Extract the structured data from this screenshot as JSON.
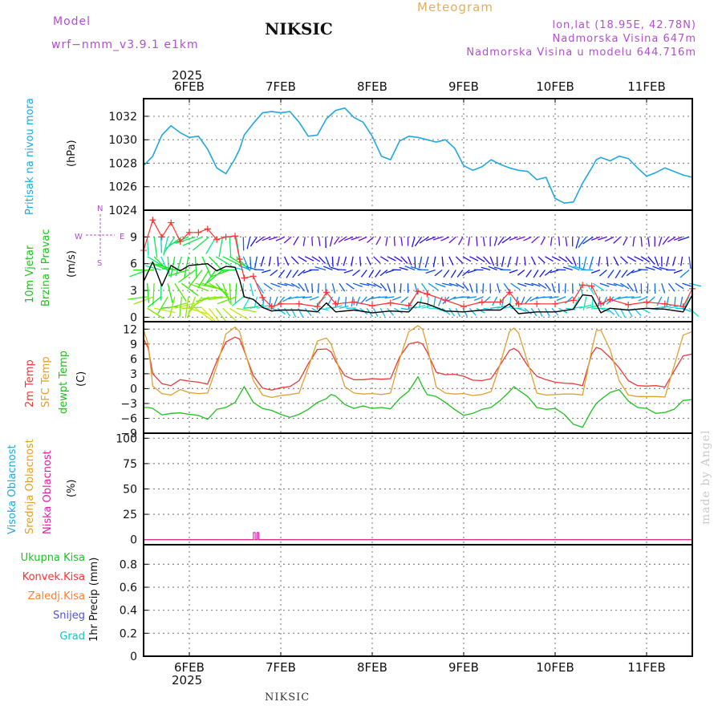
{
  "header": {
    "model_label": "Model",
    "model_name": "wrf−nmm_v3.9.1 e1km",
    "station": "NIKSIC",
    "chart_title": "Meteogram",
    "location": "lon,lat (18.95E, 42.78N)",
    "elevation": "Nadmorska Visina 647m",
    "model_elevation": "Nadmorska Visina u modelu 644.716m"
  },
  "footer": {
    "station": "NIKSIC",
    "credit": "made by Angel"
  },
  "colors": {
    "pressure": "#20a8e0",
    "wind_speed": "#000000",
    "gust": "#ff3030",
    "temp_2m": "#e83a3a",
    "temp_sfc": "#e0a030",
    "dewpoint": "#20c020",
    "precip_total": "#20c020",
    "precip_conv": "#ff3030",
    "precip_frozen": "#ff8030",
    "snow": "#5050e0",
    "graupel": "#20c0c0",
    "cloud_high": "#20a8e0",
    "cloud_mid": "#e0a030",
    "cloud_low": "#e020a0"
  },
  "chart_data": [
    {
      "type": "line",
      "panel": "pressure",
      "ylabel": "Pritisak na nivou mora",
      "unit": "(hPa)",
      "ylim": [
        1024,
        1033.5
      ],
      "yticks": [
        1024,
        1026,
        1028,
        1030,
        1032
      ],
      "x_day_start": 5.5,
      "x_day_end": 11.5,
      "grid": true,
      "x": [
        5.5,
        5.6,
        5.7,
        5.8,
        5.9,
        6.0,
        6.1,
        6.2,
        6.3,
        6.4,
        6.5,
        6.55,
        6.6,
        6.7,
        6.8,
        6.9,
        7.0,
        7.1,
        7.2,
        7.3,
        7.4,
        7.5,
        7.6,
        7.7,
        7.8,
        7.9,
        8.0,
        8.1,
        8.2,
        8.3,
        8.4,
        8.5,
        8.6,
        8.7,
        8.8,
        8.9,
        9.0,
        9.1,
        9.2,
        9.3,
        9.4,
        9.5,
        9.6,
        9.7,
        9.8,
        9.9,
        10.0,
        10.1,
        10.2,
        10.3,
        10.4,
        10.45,
        10.5,
        10.6,
        10.7,
        10.8,
        10.9,
        11.0,
        11.1,
        11.2,
        11.3,
        11.4,
        11.5
      ],
      "y": [
        1027.8,
        1028.6,
        1030.4,
        1031.2,
        1030.6,
        1030.2,
        1030.3,
        1029.2,
        1027.6,
        1027.1,
        1028.4,
        1029.2,
        1030.4,
        1031.4,
        1032.3,
        1032.4,
        1032.3,
        1032.4,
        1031.5,
        1030.3,
        1030.4,
        1031.8,
        1032.5,
        1032.7,
        1031.9,
        1031.5,
        1030.3,
        1028.6,
        1028.3,
        1029.9,
        1030.3,
        1030.2,
        1030.0,
        1029.8,
        1030.0,
        1029.3,
        1027.8,
        1027.4,
        1027.7,
        1028.3,
        1027.9,
        1027.6,
        1027.4,
        1027.3,
        1026.6,
        1026.8,
        1025.0,
        1024.6,
        1024.7,
        1026.3,
        1027.6,
        1028.3,
        1028.5,
        1028.2,
        1028.6,
        1028.4,
        1027.6,
        1026.9,
        1027.2,
        1027.6,
        1027.3,
        1027.0,
        1026.8
      ]
    },
    {
      "type": "line",
      "panel": "wind",
      "ylabel": [
        "10m Vjetar",
        "Brzina i Pravac"
      ],
      "unit": "(m/s)",
      "compass": {
        "n": "N",
        "s": "S",
        "e": "E",
        "w": "W"
      },
      "ylim": [
        -0.5,
        12
      ],
      "yticks": [
        0,
        3,
        6,
        9
      ],
      "grid": true,
      "series": [
        {
          "role": "speed",
          "x": [
            5.5,
            5.6,
            5.7,
            5.8,
            5.9,
            6.0,
            6.1,
            6.2,
            6.3,
            6.4,
            6.5,
            6.55,
            6.6,
            6.7,
            6.8,
            6.9,
            7.0,
            7.2,
            7.4,
            7.5,
            7.6,
            7.8,
            8.0,
            8.2,
            8.4,
            8.5,
            8.6,
            8.8,
            9.0,
            9.2,
            9.4,
            9.5,
            9.6,
            9.8,
            10.0,
            10.2,
            10.3,
            10.4,
            10.5,
            10.6,
            10.8,
            11.0,
            11.2,
            11.4,
            11.5
          ],
          "y": [
            4.0,
            6.2,
            3.5,
            5.8,
            5.2,
            5.8,
            5.9,
            6.0,
            5.2,
            5.7,
            5.6,
            4.2,
            2.3,
            2.0,
            1.1,
            0.7,
            0.8,
            0.8,
            0.6,
            1.6,
            0.6,
            0.8,
            0.5,
            0.7,
            0.6,
            1.7,
            1.5,
            0.7,
            0.6,
            0.8,
            0.8,
            1.5,
            0.4,
            0.6,
            0.6,
            0.9,
            2.5,
            2.4,
            0.5,
            1.0,
            0.8,
            1.0,
            0.9,
            0.6,
            2.5
          ]
        },
        {
          "role": "gust",
          "x": [
            5.5,
            5.6,
            5.7,
            5.8,
            5.9,
            6.0,
            6.1,
            6.2,
            6.3,
            6.4,
            6.5,
            6.55,
            6.6,
            6.7,
            6.8,
            6.9,
            7.0,
            7.2,
            7.4,
            7.5,
            7.6,
            7.8,
            8.0,
            8.2,
            8.4,
            8.5,
            8.6,
            8.8,
            9.0,
            9.2,
            9.4,
            9.5,
            9.6,
            9.8,
            10.0,
            10.2,
            10.3,
            10.4,
            10.5,
            10.6,
            10.8,
            11.0,
            11.2,
            11.4,
            11.5
          ],
          "y": [
            7.5,
            10.9,
            9.0,
            10.6,
            8.5,
            9.5,
            9.5,
            9.9,
            8.7,
            9.0,
            9.1,
            6.5,
            4.4,
            4.6,
            2.2,
            1.2,
            1.5,
            1.5,
            1.2,
            2.8,
            1.5,
            1.7,
            1.3,
            1.6,
            1.3,
            2.9,
            2.6,
            1.9,
            1.2,
            1.7,
            1.7,
            2.8,
            1.5,
            1.5,
            1.5,
            1.9,
            3.6,
            3.5,
            1.5,
            2.0,
            1.4,
            1.7,
            1.5,
            1.2,
            3.2
          ]
        }
      ],
      "vector_rows": [
        {
          "y": 9,
          "u": -0.5,
          "v": -0.8
        },
        {
          "y": 6.8,
          "u": 0.4,
          "v": -0.9
        },
        {
          "y": 5.3,
          "u": -0.9,
          "v": -0.3
        },
        {
          "y": 3.8,
          "u": 0.6,
          "v": -0.8
        },
        {
          "y": 2.3,
          "u": -0.7,
          "v": -0.7
        },
        {
          "y": 1.0,
          "u": 0.9,
          "v": -0.4
        }
      ]
    },
    {
      "type": "line",
      "panel": "temperature",
      "ylabel": [
        "2m Temp",
        "SFC Temp",
        "dewpt Temp"
      ],
      "unit": "(C)",
      "ylim": [
        -9,
        13.5
      ],
      "yticks": [
        -9,
        -6,
        -3,
        0,
        3,
        6,
        9,
        12
      ],
      "grid": true,
      "series": [
        {
          "name": "2m Temp",
          "x": [
            5.5,
            5.55,
            5.6,
            5.7,
            5.8,
            5.9,
            6.0,
            6.1,
            6.2,
            6.3,
            6.4,
            6.5,
            6.55,
            6.6,
            6.7,
            6.8,
            6.9,
            7.0,
            7.1,
            7.2,
            7.3,
            7.4,
            7.5,
            7.55,
            7.6,
            7.7,
            7.8,
            7.9,
            8.0,
            8.1,
            8.2,
            8.3,
            8.4,
            8.5,
            8.55,
            8.6,
            8.7,
            8.8,
            8.9,
            9.0,
            9.1,
            9.2,
            9.3,
            9.4,
            9.5,
            9.55,
            9.6,
            9.7,
            9.8,
            9.9,
            10.0,
            10.1,
            10.2,
            10.3,
            10.4,
            10.45,
            10.5,
            10.6,
            10.7,
            10.8,
            10.9,
            11.0,
            11.1,
            11.2,
            11.3,
            11.4,
            11.5
          ],
          "y": [
            10.0,
            8.2,
            3.0,
            1.0,
            0.6,
            1.8,
            1.5,
            1.3,
            0.9,
            5.5,
            9.4,
            10.4,
            10.0,
            7.6,
            2.6,
            0.1,
            -0.3,
            0.2,
            0.4,
            1.6,
            5.0,
            7.9,
            8.0,
            7.4,
            5.5,
            2.6,
            1.8,
            1.8,
            2.0,
            1.9,
            2.0,
            6.4,
            9.0,
            9.4,
            9.0,
            7.4,
            3.3,
            2.8,
            2.9,
            2.5,
            1.7,
            1.6,
            2.0,
            4.8,
            7.7,
            8.1,
            7.5,
            4.6,
            2.5,
            1.8,
            1.3,
            1.1,
            1.0,
            0.6,
            7.0,
            8.3,
            8.0,
            6.3,
            4.2,
            1.6,
            0.6,
            0.5,
            0.6,
            0.3,
            3.5,
            6.6,
            7.0
          ]
        },
        {
          "name": "SFC Temp",
          "x": [
            5.5,
            5.55,
            5.6,
            5.7,
            5.8,
            5.9,
            6.0,
            6.1,
            6.2,
            6.3,
            6.4,
            6.5,
            6.55,
            6.6,
            6.7,
            6.8,
            6.9,
            7.0,
            7.1,
            7.2,
            7.3,
            7.4,
            7.5,
            7.55,
            7.6,
            7.7,
            7.8,
            7.9,
            8.0,
            8.1,
            8.2,
            8.3,
            8.4,
            8.5,
            8.55,
            8.6,
            8.7,
            8.8,
            8.9,
            9.0,
            9.1,
            9.2,
            9.3,
            9.4,
            9.5,
            9.55,
            9.6,
            9.7,
            9.8,
            9.9,
            10.0,
            10.1,
            10.2,
            10.3,
            10.4,
            10.45,
            10.5,
            10.6,
            10.7,
            10.8,
            10.9,
            11.0,
            11.1,
            11.2,
            11.3,
            11.4,
            11.5
          ],
          "y": [
            11.8,
            9.0,
            0.5,
            -1.0,
            -1.3,
            -0.2,
            -0.8,
            -1.0,
            -0.9,
            4.5,
            11.0,
            12.4,
            11.5,
            8.0,
            1.6,
            -1.3,
            -1.8,
            -1.4,
            -1.2,
            -0.9,
            4.2,
            9.6,
            10.2,
            9.0,
            6.2,
            0.4,
            -0.9,
            -1.1,
            -1.0,
            -1.2,
            -0.9,
            6.0,
            11.5,
            12.7,
            12.0,
            8.6,
            0.3,
            -0.9,
            -1.1,
            -1.0,
            -1.4,
            -1.2,
            -0.6,
            5.0,
            11.5,
            12.2,
            11.2,
            5.3,
            -0.9,
            -1.3,
            -1.2,
            -1.1,
            -1.1,
            -1.3,
            7.8,
            11.7,
            11.8,
            7.9,
            1.6,
            -1.3,
            -1.6,
            -1.6,
            -1.6,
            -1.7,
            4.5,
            10.8,
            11.5
          ]
        },
        {
          "name": "dewpt Temp",
          "x": [
            5.5,
            5.55,
            5.6,
            5.7,
            5.8,
            5.9,
            6.0,
            6.1,
            6.2,
            6.3,
            6.4,
            6.5,
            6.55,
            6.6,
            6.7,
            6.8,
            6.9,
            7.0,
            7.1,
            7.2,
            7.3,
            7.4,
            7.5,
            7.55,
            7.6,
            7.7,
            7.8,
            7.9,
            8.0,
            8.1,
            8.2,
            8.3,
            8.4,
            8.5,
            8.55,
            8.6,
            8.7,
            8.8,
            8.9,
            9.0,
            9.1,
            9.2,
            9.3,
            9.4,
            9.5,
            9.55,
            9.6,
            9.7,
            9.8,
            9.9,
            10.0,
            10.1,
            10.2,
            10.3,
            10.4,
            10.45,
            10.5,
            10.6,
            10.7,
            10.8,
            10.9,
            11.0,
            11.1,
            11.2,
            11.3,
            11.4,
            11.5
          ],
          "y": [
            -3.8,
            -3.8,
            -4.0,
            -5.3,
            -5.0,
            -4.9,
            -5.2,
            -5.4,
            -6.2,
            -4.2,
            -3.8,
            -2.8,
            -1.2,
            0.4,
            -2.8,
            -4.0,
            -4.4,
            -5.2,
            -5.8,
            -5.2,
            -4.2,
            -2.8,
            -2.0,
            -1.2,
            -1.5,
            -3.2,
            -4.0,
            -3.5,
            -4.0,
            -3.8,
            -4.1,
            -2.0,
            -0.5,
            2.4,
            0.4,
            -1.2,
            -1.6,
            -2.8,
            -4.2,
            -5.4,
            -5.0,
            -4.2,
            -3.8,
            -2.4,
            -0.6,
            0.4,
            -0.3,
            -1.6,
            -3.8,
            -4.2,
            -4.0,
            -5.2,
            -7.2,
            -7.8,
            -4.4,
            -3.0,
            -2.2,
            -0.8,
            -0.2,
            -2.5,
            -3.8,
            -4.0,
            -5.0,
            -4.8,
            -4.2,
            -2.4,
            -2.2
          ]
        }
      ]
    },
    {
      "type": "line",
      "panel": "clouds",
      "ylabel": [
        "Visoka Oblacnost",
        "Srednja Oblacnost",
        "Niska Oblacnost"
      ],
      "unit": "(%)",
      "ylim": [
        -5,
        105
      ],
      "yticks": [
        0,
        25,
        50,
        75,
        100
      ],
      "grid": true,
      "series": [
        {
          "name": "Visoka Oblacnost",
          "x": [
            5.5,
            11.5
          ],
          "y": [
            0,
            0
          ]
        },
        {
          "name": "Srednja Oblacnost",
          "x": [
            5.5,
            11.5
          ],
          "y": [
            0,
            0
          ]
        },
        {
          "name": "Niska Oblacnost",
          "x": [
            5.5,
            6.7,
            6.7,
            6.72,
            6.72,
            6.74,
            6.74,
            6.76,
            6.76,
            11.5
          ],
          "y": [
            0,
            0,
            7,
            7,
            0,
            0,
            7,
            7,
            0,
            0
          ]
        }
      ]
    },
    {
      "type": "bar",
      "panel": "precipitation",
      "ylabel": "1hr Precip (mm)",
      "legend": [
        "Ukupna Kisa",
        "Konvek.Kisa",
        "Zaledj.Kisa",
        "Snijeg",
        "Grad"
      ],
      "ylim": [
        0,
        0.97
      ],
      "yticks": [
        0,
        0.2,
        0.4,
        0.6,
        0.8
      ],
      "ytick_labels": [
        "0",
        "0.2",
        "0.4",
        "0.6",
        "0.8"
      ],
      "values": [],
      "grid": true
    }
  ],
  "axis": {
    "year": "2025",
    "days": [
      {
        "day": 6,
        "label": "6FEB"
      },
      {
        "day": 7,
        "label": "7FEB"
      },
      {
        "day": 8,
        "label": "8FEB"
      },
      {
        "day": 9,
        "label": "9FEB"
      },
      {
        "day": 10,
        "label": "10FEB"
      },
      {
        "day": 11,
        "label": "11FEB"
      }
    ]
  }
}
